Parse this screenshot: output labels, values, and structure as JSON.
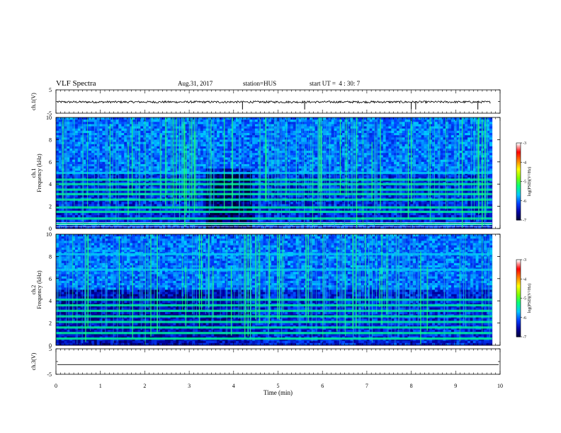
{
  "header": {
    "title": "VLF Spectra",
    "date": "Aug.31, 2017",
    "station": "station=HUS",
    "start": "start UT =  4 : 30: 7"
  },
  "chart_data": [
    {
      "type": "line",
      "name": "ch1-waveform",
      "ylabel": "ch.1(V)",
      "ylim": [
        -5,
        5
      ],
      "yticks": [
        -5,
        5
      ],
      "xlim": [
        0,
        10
      ],
      "level": -0.2,
      "spikes_x": [
        4.2,
        5.6,
        8.0,
        8.1,
        9.5
      ]
    },
    {
      "type": "heatmap",
      "name": "ch1-spectrogram",
      "ylabel": "ch.1\nFrequency (kHz)",
      "ylim": [
        0,
        10
      ],
      "yticks": [
        0,
        2,
        4,
        6,
        8,
        10
      ],
      "xlim": [
        0,
        9.82
      ],
      "harmonic_bands_khz": [
        0.4,
        0.9,
        1.5,
        1.9,
        2.6,
        3.1,
        3.5,
        4.0,
        4.4,
        5.0
      ],
      "dark_region": {
        "x": [
          3.4,
          4.4
        ],
        "khz": [
          0,
          5.5
        ]
      },
      "colorbar": {
        "label": "log(PSD)(V²/Hz)",
        "ticks": [
          -3,
          -4,
          -5,
          -6,
          -7
        ],
        "range": [
          -7,
          -3
        ]
      }
    },
    {
      "type": "heatmap",
      "name": "ch2-spectrogram",
      "ylabel": "ch.2\nFrequency (kHz)",
      "ylim": [
        0,
        10
      ],
      "yticks": [
        0,
        2,
        4,
        6,
        8,
        10
      ],
      "xlim": [
        0,
        9.82
      ],
      "harmonic_bands_khz": [
        0.6,
        1.1,
        1.6,
        2.1,
        2.6,
        3.1,
        3.6,
        4.1,
        6.8,
        8.2
      ],
      "colorbar": {
        "label": "log(PSD)(V²/Hz)",
        "ticks": [
          -3,
          -4,
          -5,
          -6,
          -7
        ],
        "range": [
          -7,
          -3
        ]
      }
    },
    {
      "type": "line",
      "name": "ch3-waveform",
      "ylabel": "ch.3(V)",
      "ylim": [
        -5,
        5
      ],
      "yticks": [
        -5,
        5
      ],
      "xlim": [
        0,
        10
      ],
      "level": -1.2,
      "xlabel": "Time (min)",
      "xticks": [
        0,
        1,
        2,
        3,
        4,
        5,
        6,
        7,
        8,
        9,
        10
      ]
    }
  ],
  "colors": {
    "scale": [
      "#000033",
      "#0000a0",
      "#0040ff",
      "#00c8ff",
      "#00ff80",
      "#80ff00",
      "#ffff00",
      "#ff8000",
      "#ff0000",
      "#ffffff"
    ]
  }
}
